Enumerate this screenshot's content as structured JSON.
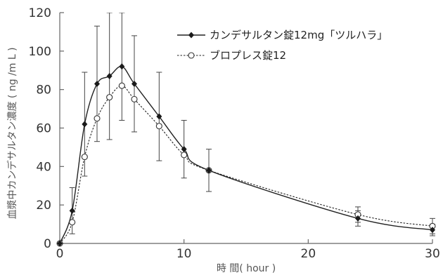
{
  "chart_data": {
    "type": "line",
    "xlabel": "時 間( hour )",
    "ylabel": "血漿中カンデサルタン濃度 ( ng /m L )",
    "xlim": [
      0,
      30
    ],
    "ylim": [
      0,
      120
    ],
    "xticks": [
      "0",
      "10",
      "20",
      "30"
    ],
    "yticks": [
      "0",
      "20",
      "40",
      "60",
      "80",
      "100",
      "120"
    ],
    "legend_position": "top-right",
    "grid": false,
    "series": [
      {
        "name": "カンデサルタン錠12mg「ツルハラ」",
        "marker": "filled-diamond",
        "line_style": "solid",
        "color": "#222222",
        "x": [
          0,
          1,
          2,
          3,
          4,
          5,
          6,
          8,
          10,
          12,
          24,
          30
        ],
        "y": [
          0,
          17,
          62,
          83,
          87,
          92,
          83,
          66,
          49,
          38,
          13,
          7
        ],
        "err": [
          0,
          12,
          27,
          30,
          33,
          28,
          25,
          23,
          15,
          11,
          4,
          3
        ]
      },
      {
        "name": "ブロプレス錠12",
        "marker": "open-circle",
        "line_style": "dotted",
        "color": "#222222",
        "x": [
          0,
          1,
          2,
          3,
          4,
          5,
          6,
          8,
          10,
          12,
          24,
          30
        ],
        "y": [
          0,
          11,
          45,
          65,
          76,
          82,
          75,
          61,
          46,
          38,
          15,
          9
        ],
        "err": [
          0,
          0,
          0,
          0,
          0,
          0,
          0,
          0,
          0,
          0,
          4,
          4
        ]
      }
    ]
  }
}
